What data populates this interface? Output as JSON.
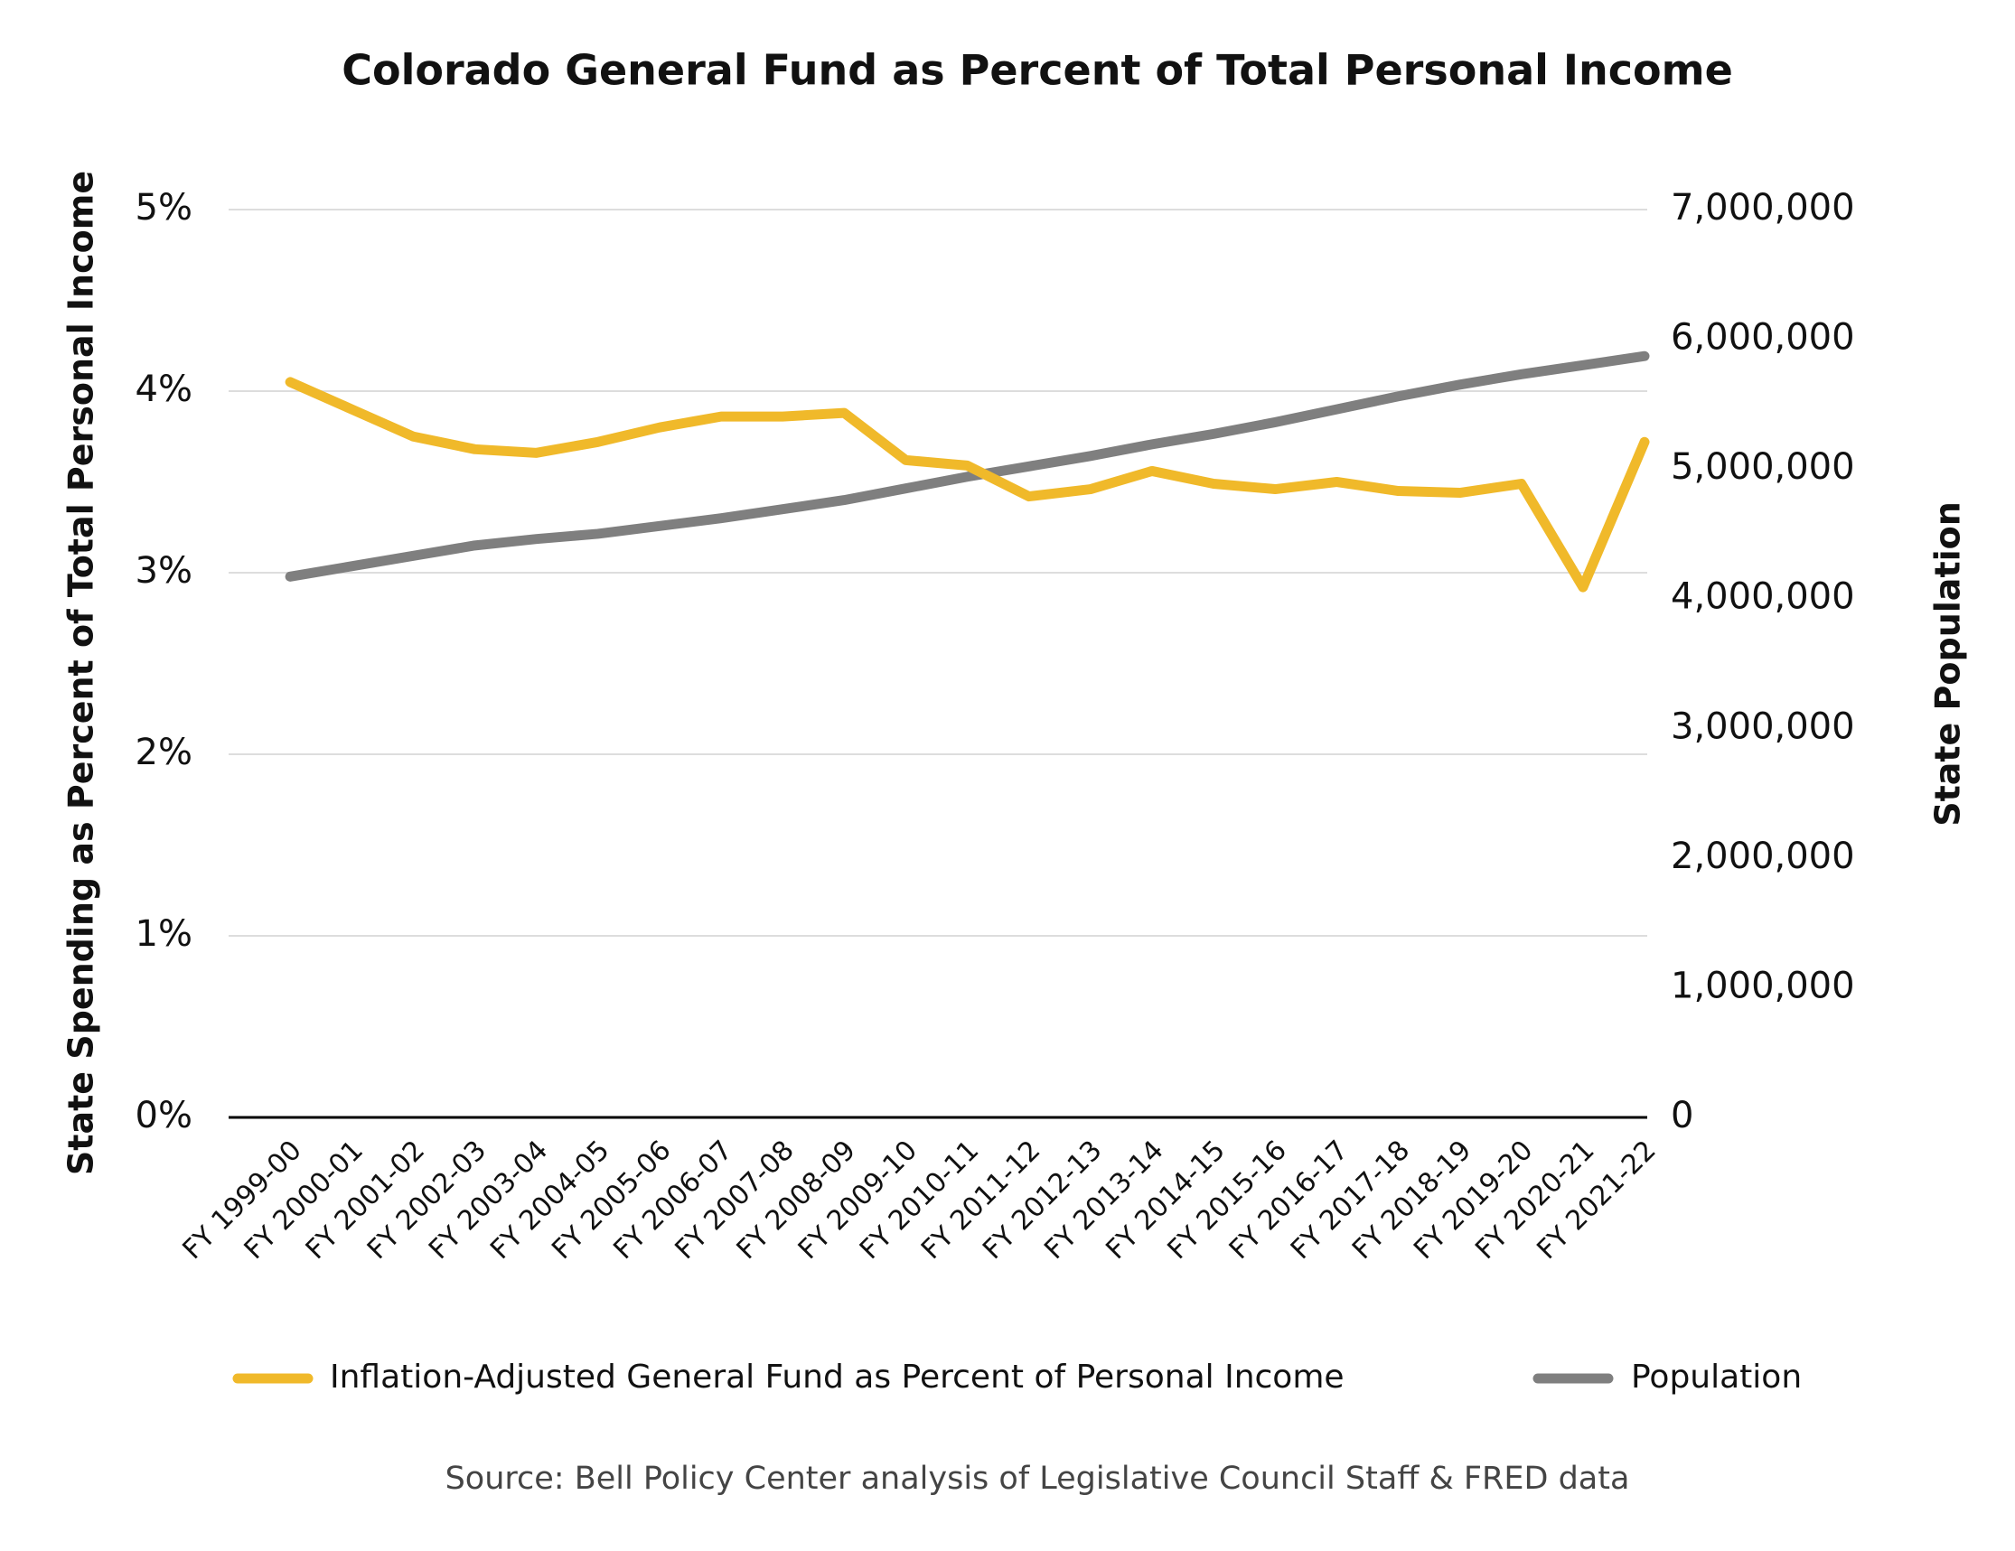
{
  "chart_data": {
    "type": "line",
    "title": "Colorado General Fund as Percent of Total Personal Income",
    "ylabel": "State Spending as Percent of Total Personal Income",
    "y2label": "State Population",
    "source": "Source: Bell Policy Center analysis of Legislative Council Staff & FRED data",
    "categories": [
      "FY 1999-00",
      "FY 2000-01",
      "FY 2001-02",
      "FY 2002-03",
      "FY 2003-04",
      "FY 2004-05",
      "FY 2005-06",
      "FY 2006-07",
      "FY 2007-08",
      "FY 2008-09",
      "FY 2009-10",
      "FY 2010-11",
      "FY 2011-12",
      "FY 2012-13",
      "FY 2013-14",
      "FY 2014-15",
      "FY 2015-16",
      "FY 2016-17",
      "FY 2017-18",
      "FY 2018-19",
      "FY 2019-20",
      "FY 2020-21",
      "FY 2021-22"
    ],
    "series": [
      {
        "name": "Inflation-Adjusted General Fund as Percent of Personal Income",
        "color": "#f0b92a",
        "values": [
          4.05,
          3.9,
          3.75,
          3.68,
          3.66,
          3.72,
          3.8,
          3.86,
          3.86,
          3.88,
          3.62,
          3.59,
          3.42,
          3.46,
          3.56,
          3.49,
          3.46,
          3.5,
          3.45,
          3.44,
          3.49,
          2.92,
          3.72
        ]
      },
      {
        "name": "Population",
        "color": "#7f7f7f",
        "axis": "y2",
        "values": [
          4170000,
          4250000,
          4330000,
          4410000,
          4460000,
          4500000,
          4560000,
          4620000,
          4690000,
          4760000,
          4850000,
          4940000,
          5020000,
          5100000,
          5190000,
          5270000,
          5360000,
          5460000,
          5560000,
          5650000,
          5730000,
          5800000,
          5870000
        ]
      }
    ],
    "ylim": [
      0,
      5
    ],
    "yticks": [
      {
        "value": 0,
        "label": "0%"
      },
      {
        "value": 1,
        "label": "1%"
      },
      {
        "value": 2,
        "label": "2%"
      },
      {
        "value": 3,
        "label": "3%"
      },
      {
        "value": 4,
        "label": "4%"
      },
      {
        "value": 5,
        "label": "5%"
      }
    ],
    "y2lim": [
      0,
      7000000
    ],
    "y2ticks": [
      0,
      {
        "value": 1000000,
        "label": "1,000,000"
      },
      {
        "value": 2000000,
        "label": "2,000,000"
      },
      {
        "value": 3000000,
        "label": "3,000,000"
      },
      {
        "value": 4000000,
        "label": "4,000,000"
      },
      {
        "value": 5000000,
        "label": "5,000,000"
      },
      {
        "value": 6000000,
        "label": "6,000,000"
      },
      {
        "value": 7000000,
        "label": "7,000,000"
      }
    ],
    "grid": true,
    "legend": "bottom"
  }
}
